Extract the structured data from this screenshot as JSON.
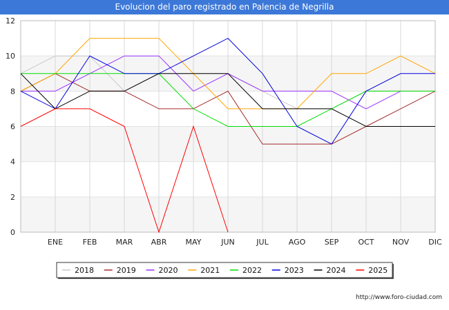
{
  "chart_data": {
    "type": "line",
    "title": "Evolucion del paro registrado en Palencia de Negrilla",
    "xlabel": "",
    "ylabel": "",
    "ylim": [
      0,
      12
    ],
    "yticks": [
      0,
      2,
      4,
      6,
      8,
      10,
      12
    ],
    "categories": [
      "",
      "ENE",
      "FEB",
      "MAR",
      "ABR",
      "MAY",
      "JUN",
      "JUL",
      "AGO",
      "SEP",
      "OCT",
      "NOV",
      "DIC"
    ],
    "grid": true,
    "legend_position": "bottom",
    "series": [
      {
        "name": "2018",
        "color": "#c8c8c8",
        "values": [
          9,
          10,
          10,
          8,
          9,
          9,
          9,
          8,
          7,
          7,
          8,
          8,
          8
        ]
      },
      {
        "name": "2019",
        "color": "#a52a2a",
        "values": [
          8,
          9,
          8,
          8,
          7,
          7,
          8,
          5,
          5,
          5,
          6,
          7,
          8
        ]
      },
      {
        "name": "2020",
        "color": "#9b30ff",
        "values": [
          8,
          8,
          9,
          10,
          10,
          8,
          9,
          8,
          8,
          8,
          7,
          8,
          null
        ]
      },
      {
        "name": "2021",
        "color": "#ffa500",
        "values": [
          8,
          9,
          11,
          11,
          11,
          9,
          7,
          7,
          7,
          9,
          9,
          10,
          9
        ]
      },
      {
        "name": "2022",
        "color": "#00dd00",
        "values": [
          9,
          9,
          9,
          9,
          9,
          7,
          6,
          6,
          6,
          7,
          8,
          8,
          8
        ]
      },
      {
        "name": "2023",
        "color": "#0000dd",
        "values": [
          8,
          7,
          10,
          9,
          9,
          10,
          11,
          9,
          6,
          5,
          8,
          9,
          9
        ]
      },
      {
        "name": "2024",
        "color": "#000000",
        "values": [
          9,
          7,
          8,
          8,
          9,
          9,
          9,
          7,
          7,
          7,
          6,
          6,
          6
        ]
      },
      {
        "name": "2025",
        "color": "#ff0000",
        "values": [
          6,
          7,
          7,
          6,
          0,
          6,
          0,
          null,
          null,
          null,
          null,
          null,
          null
        ]
      }
    ]
  },
  "footer": "http://www.foro-ciudad.com"
}
